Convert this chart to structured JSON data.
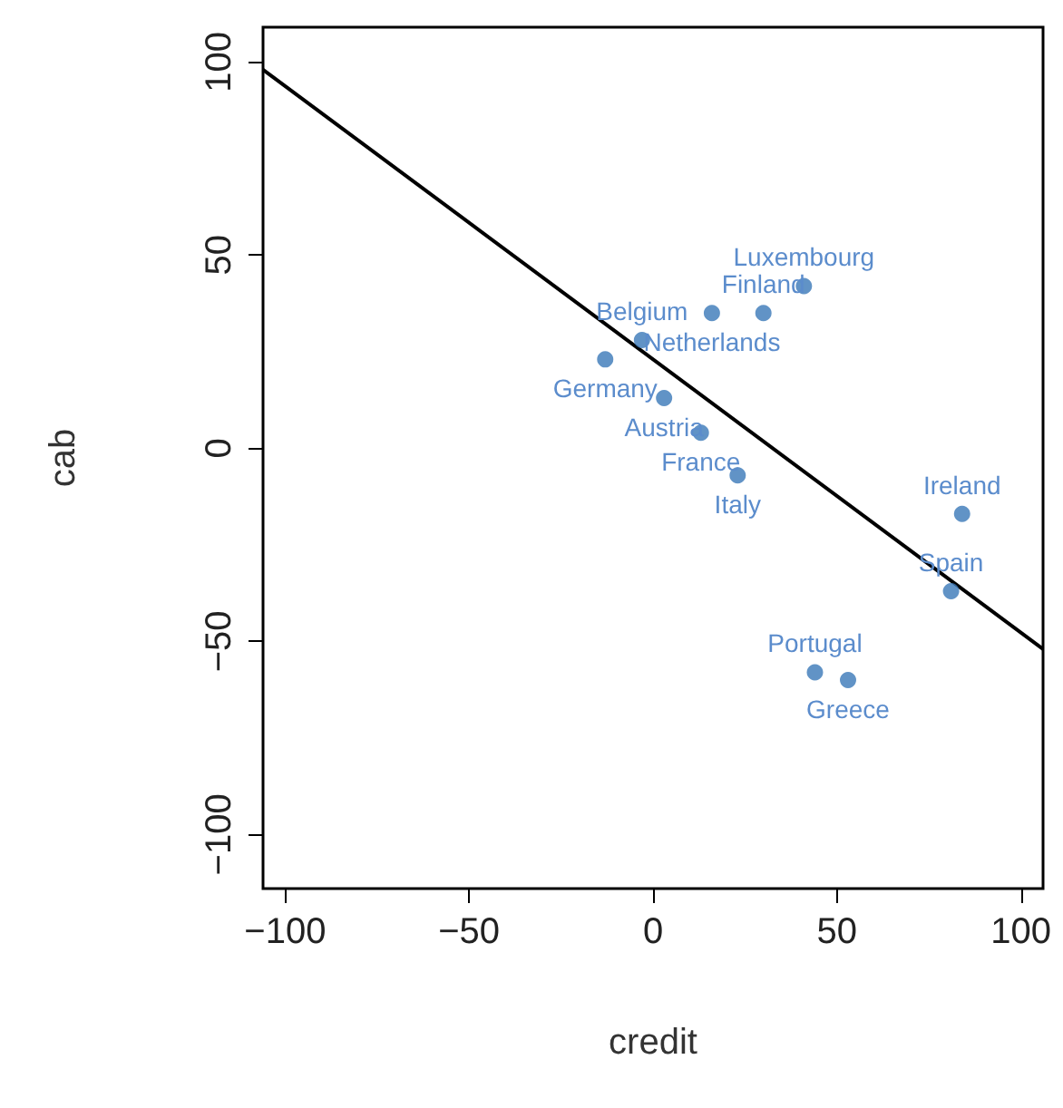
{
  "chart_data": {
    "type": "scatter",
    "xlabel": "credit",
    "ylabel": "cab",
    "xlim": [
      -106,
      106
    ],
    "ylim": [
      -114,
      109
    ],
    "xticks": [
      -100,
      -50,
      0,
      50,
      100
    ],
    "yticks": [
      -100,
      -50,
      0,
      50,
      100
    ],
    "series": [
      {
        "color": "#3a78b8",
        "x": [
          41,
          30,
          16,
          -3,
          -13,
          3,
          13,
          23,
          84,
          81,
          44,
          53
        ],
        "values": [
          42,
          35,
          35,
          28,
          23,
          13,
          4,
          -7,
          -17,
          -37,
          -58,
          -60
        ]
      },
      {
        "type": "line",
        "color": "#000000",
        "x": [
          -106,
          106
        ],
        "values": [
          98,
          -52
        ]
      }
    ],
    "annotations": [
      {
        "text": "Luxembourg",
        "x": 41,
        "y": 42
      },
      {
        "text": "Finland",
        "x": 30,
        "y": 35
      },
      {
        "text": "Netherlands",
        "x": 16,
        "y": 35
      },
      {
        "text": "Belgium",
        "x": -3,
        "y": 28
      },
      {
        "text": "Germany",
        "x": -13,
        "y": 23
      },
      {
        "text": "Austria",
        "x": 3,
        "y": 13
      },
      {
        "text": "France",
        "x": 13,
        "y": 4
      },
      {
        "text": "Italy",
        "x": 23,
        "y": -7
      },
      {
        "text": "Ireland",
        "x": 84,
        "y": -17
      },
      {
        "text": "Spain",
        "x": 81,
        "y": -37
      },
      {
        "text": "Portugal",
        "x": 44,
        "y": -58
      },
      {
        "text": "Greece",
        "x": 53,
        "y": -60
      }
    ]
  }
}
